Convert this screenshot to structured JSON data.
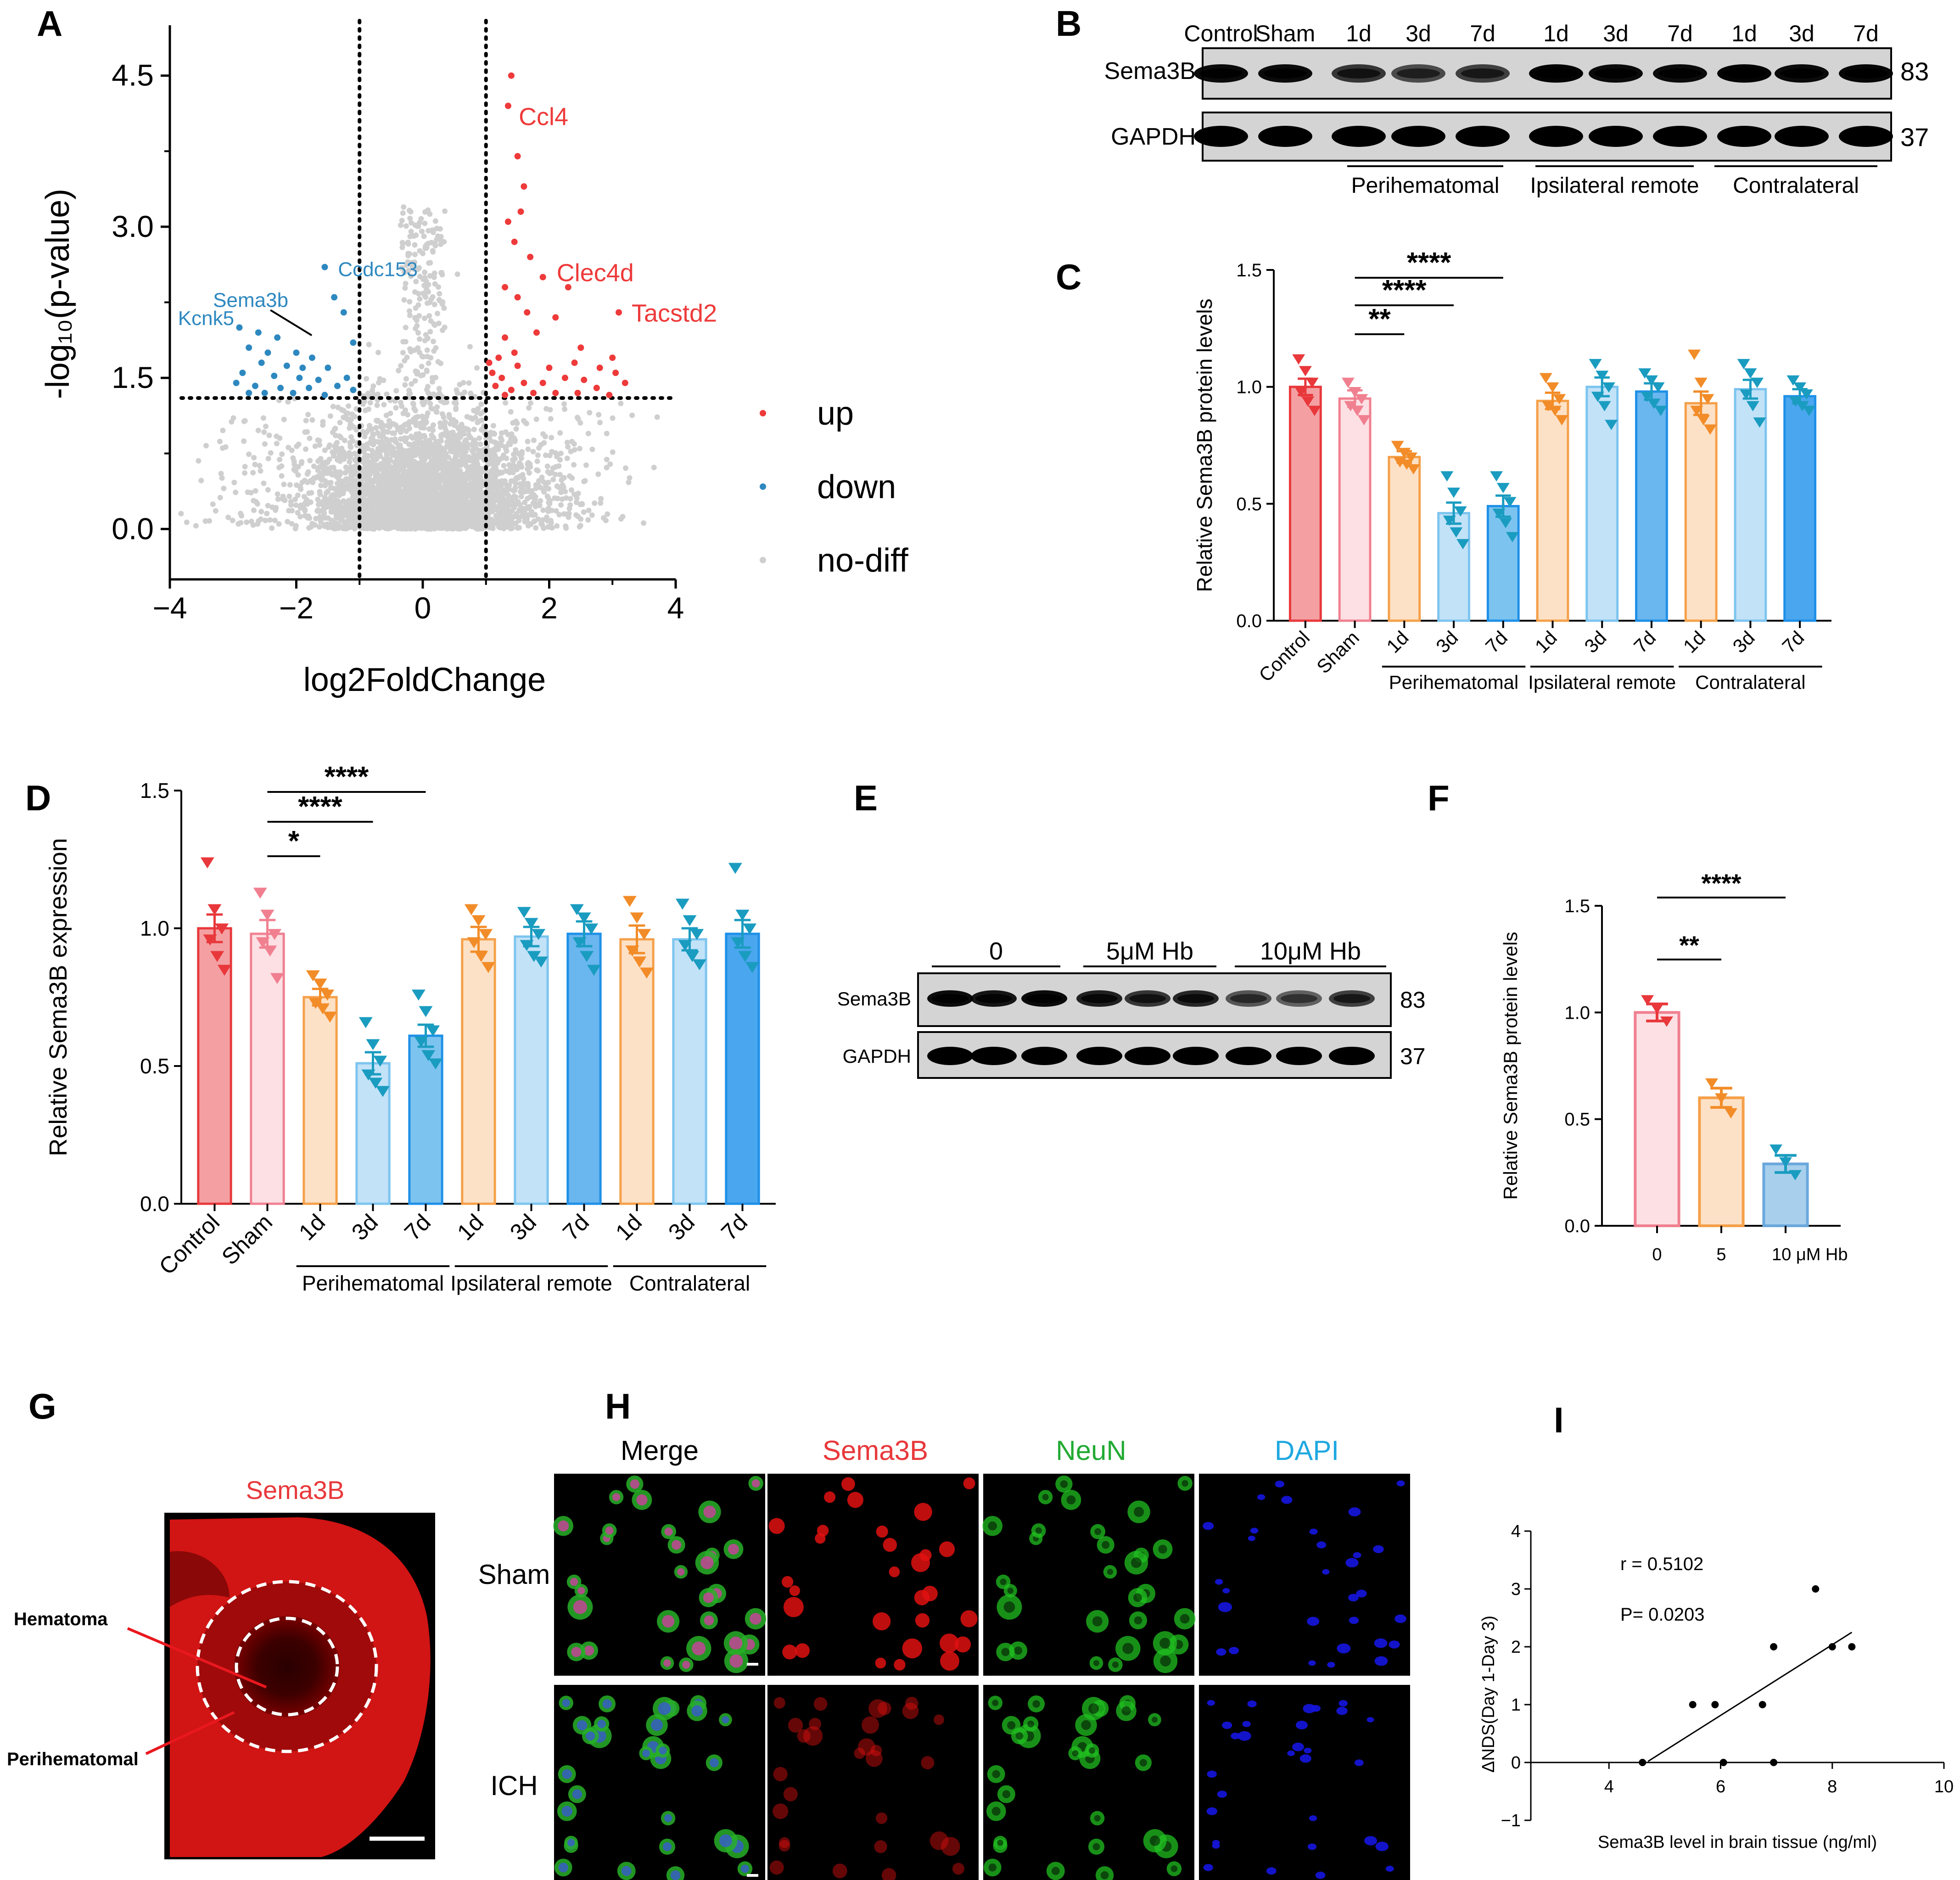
{
  "panels": {
    "A": "A",
    "B": "B",
    "C": "C",
    "D": "D",
    "E": "E",
    "F": "F",
    "G": "G",
    "H": "H",
    "I": "I"
  },
  "colors": {
    "red": "#e8383b",
    "pink": "#f08090",
    "orange": "#f28c28",
    "lightblue": "#7cc4ef",
    "teal": "#1a9cc0",
    "blue": "#1e90e8",
    "up": "#ee3a3a",
    "down": "#2e88c0",
    "nodiff": "#cfcfcf"
  },
  "chart_data": [
    {
      "id": "A",
      "type": "scatter",
      "xlabel": "log2FoldChange",
      "ylabel": "-log₁₀(p-value)",
      "xlim": [
        -4,
        4
      ],
      "ylim": [
        -0.5,
        5
      ],
      "xticks": [
        "−4",
        "−2",
        "0",
        "2",
        "4"
      ],
      "yticks": [
        "0.0",
        "1.5",
        "3.0",
        "4.5"
      ],
      "thresholds": {
        "x": [
          -1,
          1
        ],
        "y": 1.3
      },
      "legend": [
        {
          "label": "up",
          "color": "#ee3a3a"
        },
        {
          "label": "down",
          "color": "#2e88c0"
        },
        {
          "label": "no-diff",
          "color": "#cfcfcf"
        }
      ],
      "labels": [
        {
          "text": "Ccl4",
          "x": 1.3,
          "y": 4.1,
          "color": "#ee3a3a"
        },
        {
          "text": "Clec4d",
          "x": 1.9,
          "y": 2.55,
          "color": "#ee3a3a"
        },
        {
          "text": "Tacstd2",
          "x": 3.1,
          "y": 2.15,
          "color": "#ee3a3a"
        },
        {
          "text": "Ccdc153",
          "x": -1.5,
          "y": 2.5,
          "color": "#2e88c0"
        },
        {
          "text": "Sema3b",
          "x": -2.3,
          "y": 2.15,
          "color": "#2e88c0"
        },
        {
          "text": "Kcnk5",
          "x": -3.0,
          "y": 1.97,
          "color": "#2e88c0"
        }
      ],
      "up": [
        [
          1.4,
          4.5
        ],
        [
          1.35,
          4.2
        ],
        [
          1.5,
          3.7
        ],
        [
          1.6,
          3.4
        ],
        [
          1.55,
          3.15
        ],
        [
          1.35,
          3.05
        ],
        [
          1.45,
          2.85
        ],
        [
          1.7,
          2.7
        ],
        [
          1.9,
          2.5
        ],
        [
          1.3,
          2.4
        ],
        [
          1.5,
          2.3
        ],
        [
          2.3,
          2.4
        ],
        [
          2.1,
          2.1
        ],
        [
          1.65,
          2.15
        ],
        [
          3.1,
          2.15
        ],
        [
          1.3,
          1.9
        ],
        [
          1.8,
          1.95
        ],
        [
          2.5,
          1.8
        ],
        [
          1.45,
          1.75
        ],
        [
          1.2,
          1.7
        ],
        [
          2.0,
          1.6
        ],
        [
          2.8,
          1.6
        ],
        [
          3.0,
          1.7
        ],
        [
          3.05,
          1.55
        ],
        [
          1.25,
          1.5
        ],
        [
          1.6,
          1.45
        ],
        [
          1.9,
          1.45
        ],
        [
          2.25,
          1.5
        ],
        [
          2.55,
          1.48
        ],
        [
          1.15,
          1.42
        ],
        [
          1.4,
          1.38
        ],
        [
          1.75,
          1.35
        ],
        [
          2.1,
          1.35
        ],
        [
          2.45,
          1.35
        ],
        [
          2.75,
          1.4
        ],
        [
          3.2,
          1.45
        ],
        [
          1.1,
          1.55
        ],
        [
          1.3,
          1.33
        ],
        [
          2.95,
          1.33
        ],
        [
          1.05,
          1.65
        ],
        [
          1.5,
          1.62
        ],
        [
          2.4,
          1.65
        ]
      ],
      "down": [
        [
          -1.55,
          2.6
        ],
        [
          -1.4,
          2.3
        ],
        [
          -1.25,
          2.15
        ],
        [
          -2.9,
          2.0
        ],
        [
          -2.6,
          1.95
        ],
        [
          -2.3,
          1.9
        ],
        [
          -1.1,
          1.85
        ],
        [
          -2.75,
          1.8
        ],
        [
          -2.45,
          1.75
        ],
        [
          -2.0,
          1.75
        ],
        [
          -1.75,
          1.7
        ],
        [
          -2.55,
          1.65
        ],
        [
          -2.15,
          1.62
        ],
        [
          -1.5,
          1.6
        ],
        [
          -2.85,
          1.55
        ],
        [
          -2.35,
          1.52
        ],
        [
          -1.95,
          1.5
        ],
        [
          -1.65,
          1.48
        ],
        [
          -1.2,
          1.5
        ],
        [
          -2.65,
          1.42
        ],
        [
          -2.25,
          1.4
        ],
        [
          -1.8,
          1.4
        ],
        [
          -1.35,
          1.42
        ],
        [
          -2.5,
          1.35
        ],
        [
          -2.05,
          1.35
        ],
        [
          -1.55,
          1.33
        ],
        [
          -2.75,
          1.35
        ],
        [
          -2.95,
          1.45
        ],
        [
          -1.1,
          1.38
        ],
        [
          -1.9,
          1.6
        ]
      ],
      "nodiff_seed": 7,
      "nodiff_count": 4200
    },
    {
      "id": "C",
      "type": "bar",
      "ylabel": "Relative Sema3B protein levels",
      "ylim": [
        0,
        1.5
      ],
      "yticks": [
        "0.0",
        "0.5",
        "1.0",
        "1.5"
      ],
      "categories": [
        "Control",
        "Sham",
        "1d",
        "3d",
        "7d",
        "1d",
        "3d",
        "7d",
        "1d",
        "3d",
        "7d"
      ],
      "values": [
        1.0,
        0.95,
        0.7,
        0.46,
        0.49,
        0.94,
        1.0,
        0.98,
        0.93,
        0.99,
        0.96
      ],
      "errors": [
        0.035,
        0.035,
        0.025,
        0.045,
        0.045,
        0.035,
        0.04,
        0.035,
        0.05,
        0.04,
        0.03
      ],
      "colors": [
        "#e8383b",
        "#f08090",
        "#f28c28",
        "#1a9cc0",
        "#1a9cc0",
        "#f28c28",
        "#1a9cc0",
        "#1a9cc0",
        "#f28c28",
        "#1a9cc0",
        "#1a9cc0"
      ],
      "fills": [
        "#f4a0a3",
        "#fde0e4",
        "#fde1c6",
        "#c2e2f8",
        "#7cc4ef",
        "#fde1c6",
        "#c2e2f8",
        "#6ab6ee",
        "#fde1c6",
        "#c2e2f8",
        "#4aa6ee"
      ],
      "strokes": [
        "#e8383b",
        "#f08090",
        "#f5a04a",
        "#7cc4ef",
        "#1e90e8",
        "#f5a04a",
        "#7cc4ef",
        "#1e90e8",
        "#f5a04a",
        "#7cc4ef",
        "#1e90e8"
      ],
      "points": [
        [
          1.12,
          1.07,
          1.02,
          0.98,
          0.94,
          0.9
        ],
        [
          1.02,
          0.98,
          0.95,
          0.92,
          0.9,
          0.86
        ],
        [
          0.75,
          0.72,
          0.7,
          0.68,
          0.67,
          0.65
        ],
        [
          0.62,
          0.55,
          0.47,
          0.43,
          0.38,
          0.33
        ],
        [
          0.62,
          0.57,
          0.51,
          0.46,
          0.42,
          0.36
        ],
        [
          1.04,
          1.0,
          0.95,
          0.92,
          0.9,
          0.86
        ],
        [
          1.1,
          1.05,
          1.0,
          0.96,
          0.92,
          0.84
        ],
        [
          1.06,
          1.03,
          1.0,
          0.96,
          0.93,
          0.9
        ],
        [
          1.14,
          1.02,
          0.95,
          0.9,
          0.86,
          0.82
        ],
        [
          1.1,
          1.06,
          1.02,
          0.97,
          0.92,
          0.85
        ],
        [
          1.03,
          1.0,
          0.97,
          0.94,
          0.92,
          0.9
        ]
      ],
      "groups": [
        "Perihematomal",
        "Ipsilateral remote",
        "Contralateral"
      ],
      "sig": [
        {
          "from": 1,
          "to": 2,
          "label": "**"
        },
        {
          "from": 1,
          "to": 3,
          "label": "****"
        },
        {
          "from": 1,
          "to": 4,
          "label": "****"
        }
      ]
    },
    {
      "id": "D",
      "type": "bar",
      "ylabel": "Relative Sema3B expression",
      "ylim": [
        0,
        1.5
      ],
      "yticks": [
        "0.0",
        "0.5",
        "1.0",
        "1.5"
      ],
      "categories": [
        "Control",
        "Sham",
        "1d",
        "3d",
        "7d",
        "1d",
        "3d",
        "7d",
        "1d",
        "3d",
        "7d"
      ],
      "values": [
        1.0,
        0.98,
        0.75,
        0.51,
        0.61,
        0.96,
        0.97,
        0.98,
        0.96,
        0.96,
        0.98
      ],
      "errors": [
        0.05,
        0.05,
        0.03,
        0.04,
        0.04,
        0.045,
        0.035,
        0.045,
        0.05,
        0.04,
        0.05
      ],
      "colors": [
        "#e8383b",
        "#f08090",
        "#f28c28",
        "#1a9cc0",
        "#1a9cc0",
        "#f28c28",
        "#1a9cc0",
        "#1a9cc0",
        "#f28c28",
        "#1a9cc0",
        "#1a9cc0"
      ],
      "fills": [
        "#f4a0a3",
        "#fde0e4",
        "#fde1c6",
        "#c2e2f8",
        "#7cc4ef",
        "#fde1c6",
        "#c2e2f8",
        "#6ab6ee",
        "#fde1c6",
        "#c2e2f8",
        "#4aa6ee"
      ],
      "strokes": [
        "#e8383b",
        "#f08090",
        "#f5a04a",
        "#7cc4ef",
        "#1e90e8",
        "#f5a04a",
        "#7cc4ef",
        "#1e90e8",
        "#f5a04a",
        "#7cc4ef",
        "#1e90e8"
      ],
      "points": [
        [
          1.24,
          1.07,
          1.0,
          0.96,
          0.9,
          0.85
        ],
        [
          1.13,
          1.05,
          0.98,
          0.95,
          0.92,
          0.82
        ],
        [
          0.83,
          0.8,
          0.76,
          0.73,
          0.71,
          0.68
        ],
        [
          0.66,
          0.58,
          0.52,
          0.47,
          0.44,
          0.41
        ],
        [
          0.76,
          0.7,
          0.63,
          0.59,
          0.54,
          0.51
        ],
        [
          1.07,
          1.03,
          0.98,
          0.95,
          0.9,
          0.86
        ],
        [
          1.06,
          1.02,
          0.98,
          0.94,
          0.9,
          0.88
        ],
        [
          1.07,
          1.04,
          1.0,
          0.95,
          0.9,
          0.85
        ],
        [
          1.1,
          1.04,
          0.98,
          0.92,
          0.88,
          0.84
        ],
        [
          1.09,
          1.03,
          0.98,
          0.94,
          0.9,
          0.87
        ],
        [
          1.22,
          1.05,
          1.0,
          0.95,
          0.9,
          0.86
        ]
      ],
      "groups": [
        "Perihematomal",
        "Ipsilateral remote",
        "Contralateral"
      ],
      "sig": [
        {
          "from": 1,
          "to": 2,
          "label": "*"
        },
        {
          "from": 1,
          "to": 3,
          "label": "****"
        },
        {
          "from": 1,
          "to": 4,
          "label": "****"
        }
      ]
    },
    {
      "id": "F",
      "type": "bar",
      "ylabel": "Relative Sema3B protein levels",
      "ylim": [
        0,
        1.5
      ],
      "yticks": [
        "0.0",
        "0.5",
        "1.0",
        "1.5"
      ],
      "categories": [
        "0",
        "5",
        "10 μM Hb"
      ],
      "values": [
        1.0,
        0.6,
        0.29
      ],
      "errors": [
        0.04,
        0.045,
        0.04
      ],
      "colors": [
        "#e8383b",
        "#f28c28",
        "#1a9cc0"
      ],
      "fills": [
        "#fde0e4",
        "#fde1c6",
        "#a8d0ec"
      ],
      "strokes": [
        "#f08090",
        "#f5a04a",
        "#6aa8dc"
      ],
      "points": [
        [
          1.06,
          1.02,
          0.96
        ],
        [
          0.67,
          0.6,
          0.53
        ],
        [
          0.36,
          0.3,
          0.24
        ]
      ],
      "sig": [
        {
          "from": 0,
          "to": 1,
          "label": "**"
        },
        {
          "from": 0,
          "to": 2,
          "label": "****"
        }
      ]
    },
    {
      "id": "I",
      "type": "scatter",
      "xlabel": "Sema3B level in brain tissue (ng/ml)",
      "ylabel": "ΔNDS(Day 1-Day 3)",
      "xlim": [
        2.6,
        10
      ],
      "ylim": [
        -1,
        4
      ],
      "xticks": [
        "4",
        "6",
        "8",
        "10"
      ],
      "yticks": [
        "−1",
        "0",
        "1",
        "2",
        "3",
        "4"
      ],
      "points": [
        [
          4.6,
          0
        ],
        [
          5.5,
          1
        ],
        [
          5.9,
          1
        ],
        [
          6.05,
          0
        ],
        [
          6.75,
          1
        ],
        [
          6.95,
          2
        ],
        [
          6.95,
          0
        ],
        [
          7.7,
          3
        ],
        [
          8.0,
          2
        ],
        [
          8.35,
          2
        ]
      ],
      "fit": {
        "x": [
          4.7,
          8.35
        ],
        "y": [
          0.02,
          2.25
        ]
      },
      "r_text": "r = 0.5102",
      "p_text": "P= 0.0203"
    }
  ],
  "blotB": {
    "lanes": [
      "Control",
      "Sham",
      "1d",
      "3d",
      "7d",
      "1d",
      "3d",
      "7d",
      "1d",
      "3d",
      "7d"
    ],
    "rows": [
      "Sema3B",
      "GAPDH"
    ],
    "kda": [
      "83",
      "37"
    ],
    "groups": [
      "Perihematomal",
      "Ipsilateral remote",
      "Contralateral"
    ]
  },
  "blotE": {
    "groups": [
      "0",
      "5μM Hb",
      "10μM Hb"
    ],
    "rows": [
      "Sema3B",
      "GAPDH"
    ],
    "kda": [
      "83",
      "37"
    ]
  },
  "panelG": {
    "title": "Sema3B",
    "labels": [
      "Hematoma",
      "Perihematomal"
    ]
  },
  "panelH": {
    "columns": [
      "Merge",
      "Sema3B",
      "NeuN",
      "DAPI"
    ],
    "rows": [
      "Sham",
      "ICH"
    ],
    "column_colors": [
      "#000000",
      "#e8383b",
      "#22aa33",
      "#1ea8e0"
    ]
  }
}
